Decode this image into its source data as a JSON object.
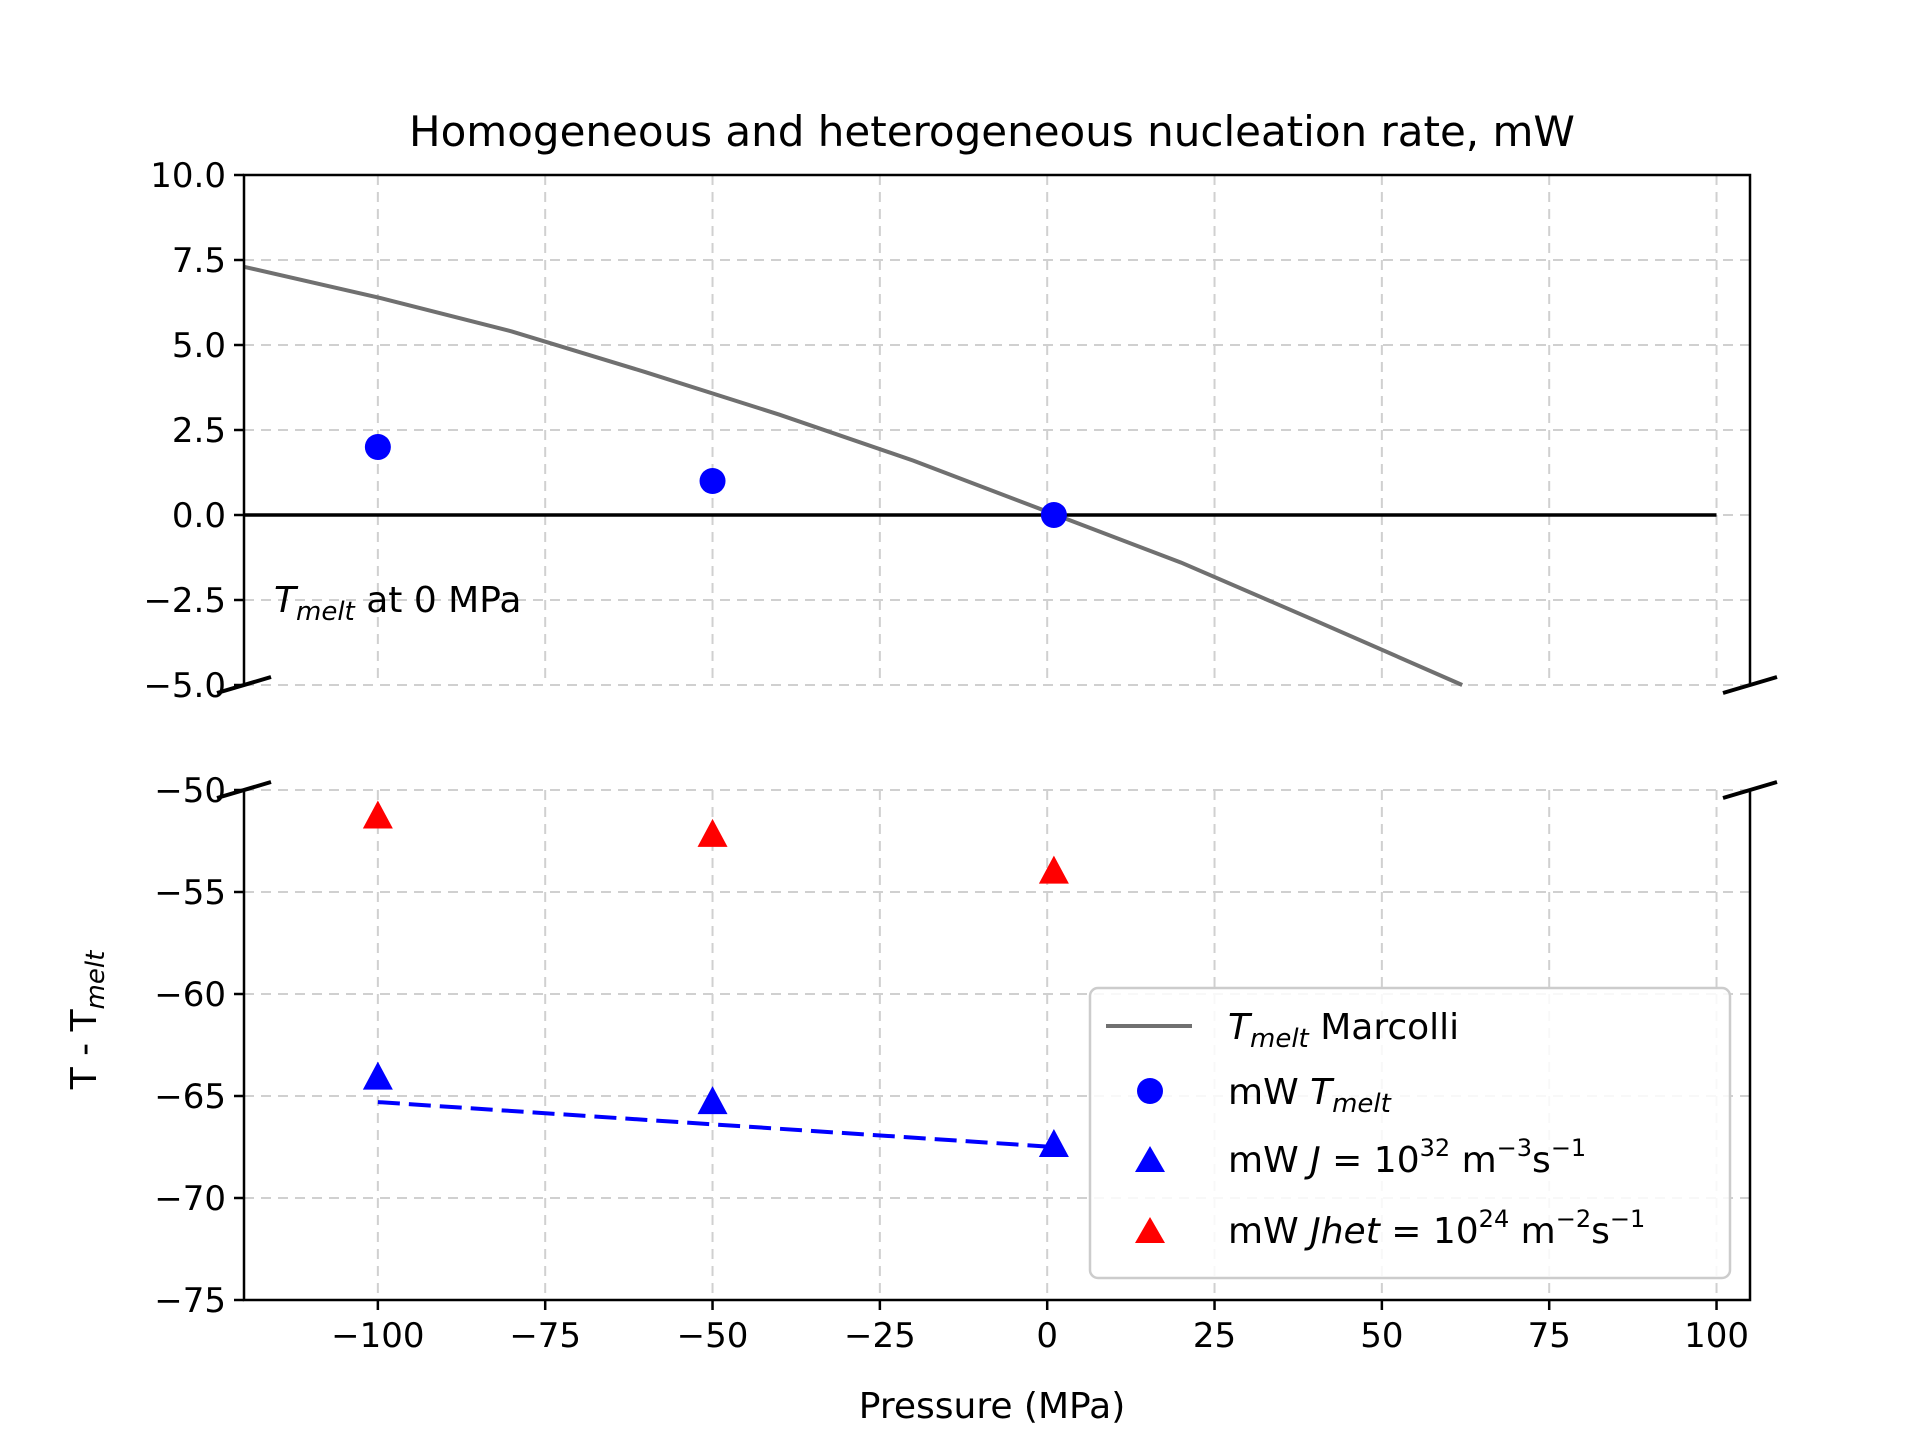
{
  "chart_data": {
    "type": "scatter",
    "title": "Homogeneous and heterogeneous nucleation rate, mW",
    "xlabel": "Pressure (MPa)",
    "ylabel": {
      "base": "T - T",
      "sub": "melt"
    },
    "xlim": [
      -120,
      105
    ],
    "x_ticks": [
      -100,
      -75,
      -50,
      -25,
      0,
      25,
      50,
      75,
      100
    ],
    "x_tick_labels": [
      "−100",
      "−75",
      "−50",
      "−25",
      "0",
      "25",
      "50",
      "75",
      "100"
    ],
    "broken_axis": true,
    "upper_panel": {
      "ylim": [
        -5,
        10
      ],
      "y_ticks": [
        10,
        7.5,
        5,
        2.5,
        0,
        -2.5,
        -5
      ],
      "y_tick_labels": [
        "10.0",
        "7.5",
        "5.0",
        "2.5",
        "0.0",
        "−2.5",
        "−5.0"
      ]
    },
    "lower_panel": {
      "ylim": [
        -75,
        -50
      ],
      "y_ticks": [
        -50,
        -55,
        -60,
        -65,
        -70,
        -75
      ],
      "y_tick_labels": [
        "−50",
        "−55",
        "−60",
        "−65",
        "−70",
        "−75"
      ]
    },
    "grid": true,
    "legend_position": "lower-right",
    "annotation": {
      "sym": "T",
      "sub": "melt",
      "rest": " at 0 MPa"
    },
    "series": [
      {
        "key": "tmelt_marcolli",
        "name": {
          "sym": "T",
          "sub": "melt",
          "rest": " Marcolli"
        },
        "kind": "line",
        "panel": "upper",
        "color": "#707070",
        "x": [
          -120,
          -100,
          -80,
          -60,
          -40,
          -20,
          0,
          20,
          40,
          62
        ],
        "y": [
          7.3,
          6.4,
          5.4,
          4.2,
          2.95,
          1.6,
          0.1,
          -1.4,
          -3.1,
          -5.0
        ]
      },
      {
        "key": "zero_reference",
        "kind": "line",
        "panel": "upper",
        "color": "#000000",
        "x": [
          -120,
          100
        ],
        "y": [
          0,
          0
        ]
      },
      {
        "key": "mw_tmelt",
        "name": {
          "sym": "mW ",
          "it": "T",
          "sub": "melt"
        },
        "kind": "circle",
        "panel": "upper",
        "color": "#0000ff",
        "x": [
          -100,
          -50,
          1
        ],
        "y": [
          2.0,
          1.0,
          0.0
        ]
      },
      {
        "key": "mw_j_hom",
        "name": {
          "text": "mW ",
          "it": "J",
          "eq": " = 10",
          "sup1": "32",
          "unit": " m",
          "sup2": "−3",
          "unit2": "s",
          "sup3": "−1"
        },
        "kind": "triangle",
        "panel": "lower",
        "color": "#0000ff",
        "x": [
          -100,
          -50,
          1
        ],
        "y": [
          -64.1,
          -65.3,
          -67.4
        ]
      },
      {
        "key": "mw_j_fit",
        "kind": "dashed",
        "panel": "lower",
        "color": "#0000ff",
        "x": [
          -100,
          1
        ],
        "y": [
          -65.3,
          -67.5
        ]
      },
      {
        "key": "mw_j_het",
        "name": {
          "text": "mW ",
          "it": "Jhet",
          "eq": " = 10",
          "sup1": "24",
          "unit": " m",
          "sup2": "−2",
          "unit2": "s",
          "sup3": "−1"
        },
        "kind": "triangle",
        "panel": "lower",
        "color": "#ff0000",
        "x": [
          -100,
          -50,
          1
        ],
        "y": [
          -51.3,
          -52.2,
          -54.0
        ]
      }
    ]
  }
}
